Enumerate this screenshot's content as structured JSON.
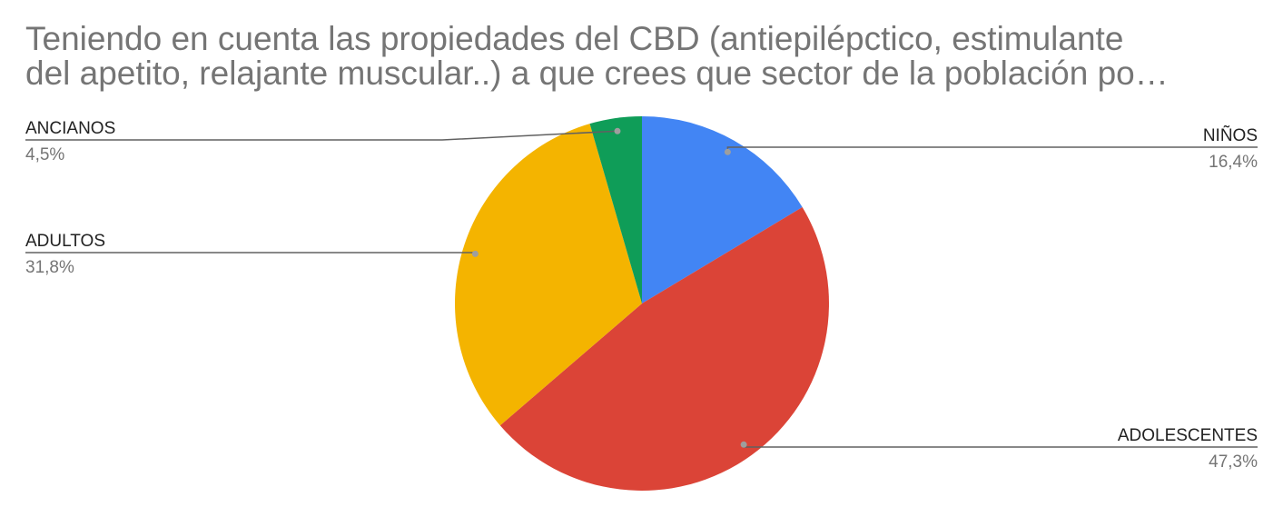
{
  "title_lines": [
    "Teniendo en cuenta las propiedades del CBD (antiepilépctico, estimulante",
    "del apetito, relajante muscular..) a que crees que sector de la población po…"
  ],
  "chart_data": {
    "type": "pie",
    "title": "Teniendo en cuenta las propiedades del CBD (antiepilépctico, estimulante del apetito, relajante muscular..) a que crees que sector de la población po…",
    "slices": [
      {
        "label": "NIÑOS",
        "value": 16.4,
        "display": "16,4%",
        "color": "#4285f4"
      },
      {
        "label": "ADOLESCENTES",
        "value": 47.3,
        "display": "47,3%",
        "color": "#db4437"
      },
      {
        "label": "ADULTOS",
        "value": 31.8,
        "display": "31,8%",
        "color": "#f4b400"
      },
      {
        "label": "ANCIANOS",
        "value": 4.5,
        "display": "4,5%",
        "color": "#0f9d58"
      }
    ],
    "start_angle_deg": 0,
    "direction": "clockwise",
    "legend": "none",
    "labels": "outside-with-leader-lines"
  }
}
